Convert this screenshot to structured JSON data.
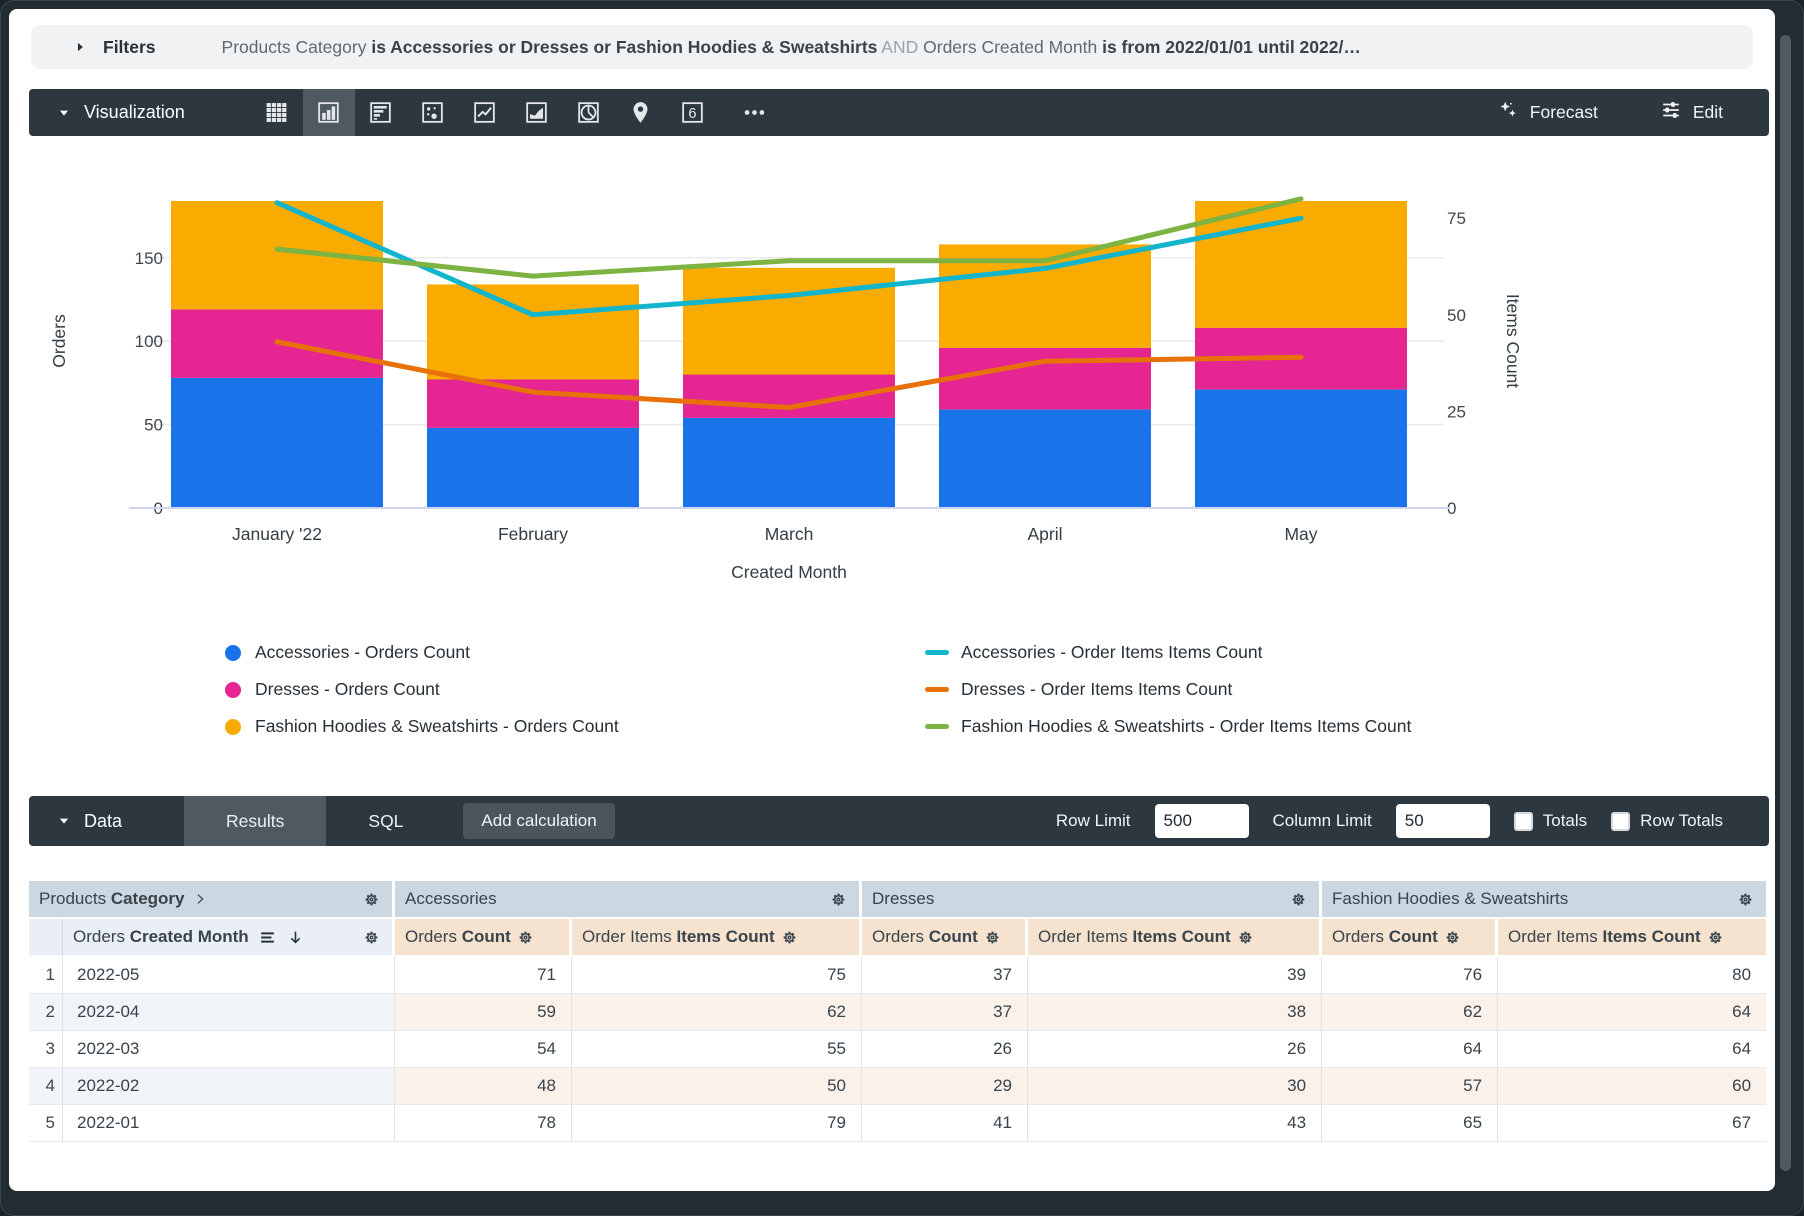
{
  "filters": {
    "label": "Filters",
    "summary_parts": [
      {
        "text": "Products Category ",
        "style": "normal"
      },
      {
        "text": "is Accessories or Dresses or Fashion Hoodies & Sweatshirts",
        "style": "bold"
      },
      {
        "text": " AND ",
        "style": "dim"
      },
      {
        "text": "Orders Created Month ",
        "style": "normal"
      },
      {
        "text": "is from 2022/01/01 until 2022/…",
        "style": "bold"
      }
    ]
  },
  "viz_toolbar": {
    "label": "Visualization",
    "chart_type_icons": [
      {
        "name": "table-chart-icon",
        "type": "table",
        "selected": false
      },
      {
        "name": "column-chart-icon",
        "type": "column",
        "selected": true
      },
      {
        "name": "bar-chart-icon",
        "type": "bar",
        "selected": false
      },
      {
        "name": "scatter-chart-icon",
        "type": "scatter",
        "selected": false
      },
      {
        "name": "line-chart-icon",
        "type": "line",
        "selected": false
      },
      {
        "name": "area-chart-icon",
        "type": "area",
        "selected": false
      },
      {
        "name": "pie-chart-icon",
        "type": "pie",
        "selected": false
      },
      {
        "name": "map-chart-icon",
        "type": "map",
        "selected": false
      },
      {
        "name": "single-value-icon",
        "type": "single",
        "glyph": "6",
        "selected": false
      },
      {
        "name": "more-chart-types-icon",
        "type": "more",
        "selected": false
      }
    ],
    "forecast_label": "Forecast",
    "edit_label": "Edit"
  },
  "chart_data": {
    "type": "combo-stacked-column-and-line",
    "categories": [
      "January '22",
      "February",
      "March",
      "April",
      "May"
    ],
    "bar_series": [
      {
        "name": "Accessories - Orders Count",
        "color": "#1a73e8",
        "values": [
          78,
          48,
          54,
          59,
          71
        ]
      },
      {
        "name": "Dresses - Orders Count",
        "color": "#e52592",
        "values": [
          41,
          29,
          26,
          37,
          37
        ]
      },
      {
        "name": "Fashion Hoodies & Sweatshirts - Orders Count",
        "color": "#f9ab00",
        "values": [
          65,
          57,
          64,
          62,
          76
        ]
      }
    ],
    "line_series": [
      {
        "name": "Accessories - Order Items Items Count",
        "color": "#12b5cb",
        "values": [
          79,
          50,
          55,
          62,
          75
        ]
      },
      {
        "name": "Dresses - Order Items Items Count",
        "color": "#e8710a",
        "values": [
          43,
          30,
          26,
          38,
          39
        ]
      },
      {
        "name": "Fashion Hoodies & Sweatshirts - Order Items Items Count",
        "color": "#7cb342",
        "values": [
          67,
          60,
          64,
          64,
          80
        ]
      }
    ],
    "xlabel": "Created Month",
    "ylabel_left": "Orders",
    "ylabel_right": "Items Count",
    "yticks_left": [
      0,
      50,
      100,
      150
    ],
    "yticks_right": [
      0,
      25,
      50,
      75
    ],
    "ylim_left": [
      0,
      205
    ],
    "ylim_right": [
      0,
      88.5
    ],
    "grid": true,
    "legend_position": "bottom"
  },
  "data_toolbar": {
    "label": "Data",
    "tabs": [
      "Results",
      "SQL"
    ],
    "active_tab": "Results",
    "add_calculation_label": "Add calculation",
    "row_limit_label": "Row Limit",
    "row_limit_value": "500",
    "column_limit_label": "Column Limit",
    "column_limit_value": "50",
    "totals_label": "Totals",
    "row_totals_label": "Row Totals"
  },
  "table": {
    "dimension_group": {
      "plain": "Products",
      "bold": "Category"
    },
    "groups": [
      "Accessories",
      "Dresses",
      "Fashion Hoodies & Sweatshirts"
    ],
    "dimension_header": {
      "plain": "Orders",
      "bold": "Created Month"
    },
    "measure_headers": [
      {
        "plain": "Orders",
        "bold": "Count"
      },
      {
        "plain": "Order Items",
        "bold": "Items Count"
      }
    ],
    "rows": [
      {
        "num": "1",
        "month": "2022-05",
        "values": [
          "71",
          "75",
          "37",
          "39",
          "76",
          "80"
        ]
      },
      {
        "num": "2",
        "month": "2022-04",
        "values": [
          "59",
          "62",
          "37",
          "38",
          "62",
          "64"
        ]
      },
      {
        "num": "3",
        "month": "2022-03",
        "values": [
          "54",
          "55",
          "26",
          "26",
          "64",
          "64"
        ]
      },
      {
        "num": "4",
        "month": "2022-02",
        "values": [
          "48",
          "50",
          "29",
          "30",
          "57",
          "60"
        ]
      },
      {
        "num": "5",
        "month": "2022-01",
        "values": [
          "78",
          "79",
          "41",
          "43",
          "65",
          "67"
        ]
      }
    ]
  }
}
